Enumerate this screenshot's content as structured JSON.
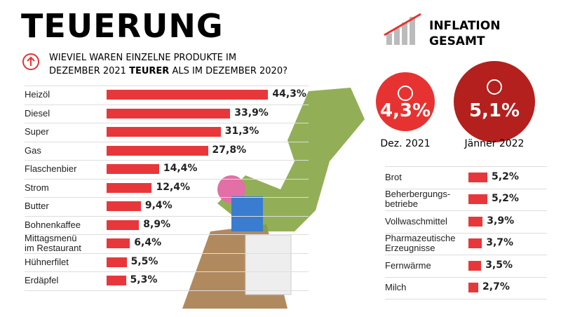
{
  "header": {
    "title": "TEUERUNG",
    "question": [
      "WIEVIEL WAREN EINZELNE PRODUKTE IM",
      "DEZEMBER 2021",
      "TEURER",
      "ALS IM DEZEMBER 2020?"
    ]
  },
  "inflation": {
    "title": [
      "INFLATION",
      "GESAMT"
    ],
    "items": [
      {
        "value": 4.3,
        "label": "4,3%",
        "period": "Dez. 2021",
        "color": "#e63331"
      },
      {
        "value": 5.1,
        "label": "5,1%",
        "period": "Jänner 2022",
        "color": "#b3201d"
      }
    ]
  },
  "chart_data": [
    {
      "type": "bar",
      "orientation": "horizontal",
      "color": "#e8373a",
      "categories": [
        "Heizöl",
        "Diesel",
        "Super",
        "Gas",
        "Flaschenbier",
        "Strom",
        "Butter",
        "Bohnenkaffee",
        "Mittagsmenü\nim Restaurant",
        "Hühnerfilet",
        "Erdäpfel"
      ],
      "values": [
        44.3,
        33.9,
        31.3,
        27.8,
        14.4,
        12.4,
        9.4,
        8.9,
        6.4,
        5.5,
        5.3
      ],
      "value_labels": [
        "44,3%",
        "33,9%",
        "31,3%",
        "27,8%",
        "14,4%",
        "12,4%",
        "9,4%",
        "8,9%",
        "6,4%",
        "5,5%",
        "5,3%"
      ]
    },
    {
      "type": "bar",
      "orientation": "horizontal",
      "color": "#e8373a",
      "categories": [
        "Brot",
        "Beherbergungs-\nbetriebe",
        "Vollwaschmittel",
        "Pharmazeutische\nErzeugnisse",
        "Fernwärme",
        "Milch"
      ],
      "values": [
        5.2,
        5.2,
        3.9,
        3.7,
        3.5,
        2.7
      ],
      "value_labels": [
        "5,2%",
        "5,2%",
        "3,9%",
        "3,7%",
        "3,5%",
        "2,7%"
      ]
    }
  ]
}
